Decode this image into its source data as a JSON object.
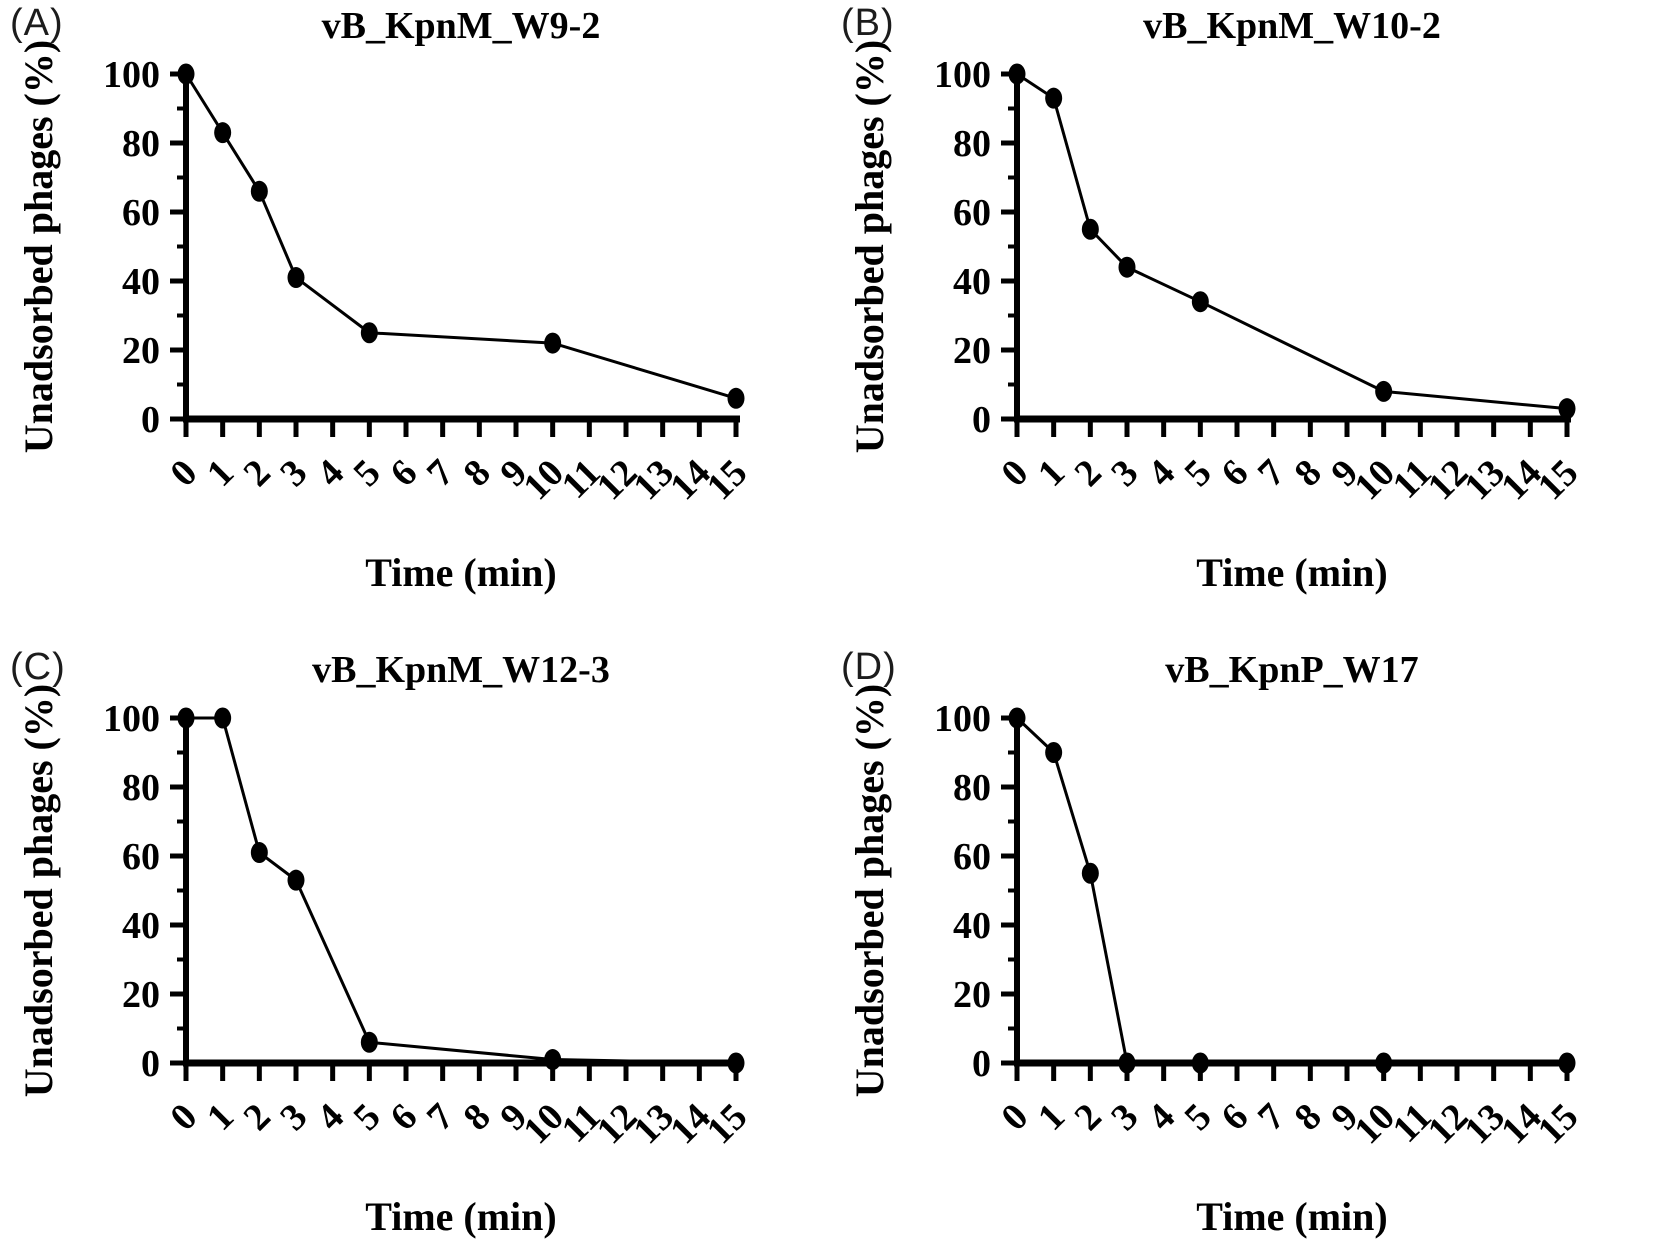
{
  "figure": {
    "background": "#ffffff",
    "line_color": "#000000",
    "text_color": "#000000",
    "panel_letter_color": "#1c1c1c"
  },
  "chart_data": [
    {
      "type": "line",
      "panel_label": "(A)",
      "title": "vB_KpnM_W9-2",
      "xlabel": "Time (min)",
      "ylabel": "Unadsorbed phages (%)",
      "x": [
        0,
        1,
        2,
        3,
        5,
        10,
        15
      ],
      "y": [
        100,
        83,
        66,
        41,
        25,
        22,
        6
      ],
      "xlim": [
        0,
        15
      ],
      "ylim": [
        0,
        100
      ],
      "xticks": [
        0,
        1,
        2,
        3,
        4,
        5,
        6,
        7,
        8,
        9,
        10,
        11,
        12,
        13,
        14,
        15
      ],
      "yticks": [
        0,
        20,
        40,
        60,
        80,
        100
      ],
      "y_minor_step": 10,
      "grid": false,
      "legend": null,
      "marker": "filled-circle"
    },
    {
      "type": "line",
      "panel_label": "(B)",
      "title": "vB_KpnM_W10-2",
      "xlabel": "Time (min)",
      "ylabel": "Unadsorbed phages (%)",
      "x": [
        0,
        1,
        2,
        3,
        5,
        10,
        15
      ],
      "y": [
        100,
        93,
        55,
        44,
        34,
        8,
        3
      ],
      "xlim": [
        0,
        15
      ],
      "ylim": [
        0,
        100
      ],
      "xticks": [
        0,
        1,
        2,
        3,
        4,
        5,
        6,
        7,
        8,
        9,
        10,
        11,
        12,
        13,
        14,
        15
      ],
      "yticks": [
        0,
        20,
        40,
        60,
        80,
        100
      ],
      "y_minor_step": 10,
      "grid": false,
      "legend": null,
      "marker": "filled-circle"
    },
    {
      "type": "line",
      "panel_label": "(C)",
      "title": "vB_KpnM_W12-3",
      "xlabel": "Time (min)",
      "ylabel": "Unadsorbed phages (%)",
      "x": [
        0,
        1,
        2,
        3,
        5,
        10,
        15
      ],
      "y": [
        100,
        100,
        61,
        53,
        6,
        1,
        0
      ],
      "xlim": [
        0,
        15
      ],
      "ylim": [
        0,
        100
      ],
      "xticks": [
        0,
        1,
        2,
        3,
        4,
        5,
        6,
        7,
        8,
        9,
        10,
        11,
        12,
        13,
        14,
        15
      ],
      "yticks": [
        0,
        20,
        40,
        60,
        80,
        100
      ],
      "y_minor_step": 10,
      "grid": false,
      "legend": null,
      "marker": "filled-circle"
    },
    {
      "type": "line",
      "panel_label": "(D)",
      "title": "vB_KpnP_W17",
      "xlabel": "Time (min)",
      "ylabel": "Unadsorbed phages (%)",
      "x": [
        0,
        1,
        2,
        3,
        5,
        10,
        15
      ],
      "y": [
        100,
        90,
        55,
        0,
        0,
        0,
        0
      ],
      "xlim": [
        0,
        15
      ],
      "ylim": [
        0,
        100
      ],
      "xticks": [
        0,
        1,
        2,
        3,
        4,
        5,
        6,
        7,
        8,
        9,
        10,
        11,
        12,
        13,
        14,
        15
      ],
      "yticks": [
        0,
        20,
        40,
        60,
        80,
        100
      ],
      "y_minor_step": 10,
      "grid": false,
      "legend": null,
      "marker": "filled-circle"
    }
  ]
}
